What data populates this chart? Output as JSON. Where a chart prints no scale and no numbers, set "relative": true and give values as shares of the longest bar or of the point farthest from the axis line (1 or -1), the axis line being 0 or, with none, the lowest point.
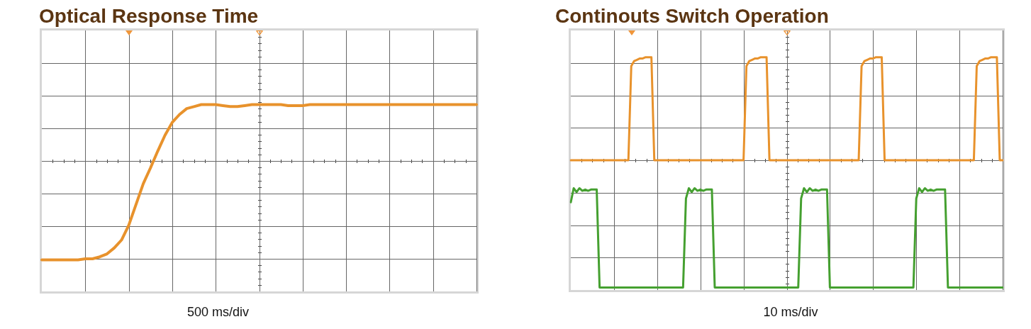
{
  "chart_data": [
    {
      "type": "line",
      "title": "Optical Response Time",
      "xlabel": "500 ms/div",
      "relative": true,
      "grid": true,
      "tick_labels": false,
      "marker": "none",
      "line_style": "solid",
      "categories": [
        null,
        null,
        null,
        null,
        null,
        null,
        null,
        null,
        null,
        null,
        null,
        null,
        null,
        null,
        null,
        null,
        null,
        null,
        null,
        null,
        null,
        null,
        null,
        null,
        null,
        null,
        null,
        null,
        null,
        null,
        null,
        null,
        null,
        null,
        null,
        null,
        null,
        null,
        null,
        null,
        null,
        null,
        null,
        null,
        null,
        null,
        null,
        null,
        null,
        null,
        null,
        null,
        null,
        null,
        null,
        null,
        null,
        null,
        null,
        null,
        null
      ],
      "series": [
        {
          "color": "#e8922c",
          "values": [
            -1,
            -1,
            -1,
            -1,
            -1,
            -1,
            -0.99,
            -0.99,
            -0.97,
            -0.94,
            -0.88,
            -0.8,
            -0.65,
            -0.44,
            -0.23,
            -0.07,
            0.1,
            0.26,
            0.39,
            0.47,
            0.53,
            0.55,
            0.57,
            0.57,
            0.57,
            0.56,
            0.55,
            0.55,
            0.56,
            0.57,
            0.57,
            0.57,
            0.57,
            0.57,
            0.56,
            0.56,
            0.56,
            0.57,
            0.57,
            0.57,
            0.57,
            0.57,
            0.57,
            0.57,
            0.57,
            0.57,
            0.57,
            0.57,
            0.57,
            0.57,
            0.57,
            0.57,
            0.57,
            0.57,
            0.57,
            0.57,
            0.57,
            0.57,
            0.57,
            0.57,
            0.57
          ]
        }
      ]
    },
    {
      "type": "line",
      "title": "Continouts Switch Operation",
      "xlabel": "10 ms/div",
      "relative": true,
      "grid": true,
      "tick_labels": false,
      "marker": "none",
      "line_style": "solid",
      "categories": [
        null,
        null,
        null,
        null,
        null,
        null,
        null,
        null,
        null,
        null,
        null,
        null,
        null,
        null,
        null,
        null,
        null,
        null,
        null,
        null,
        null,
        null,
        null,
        null,
        null,
        null,
        null,
        null,
        null,
        null,
        null,
        null,
        null,
        null,
        null,
        null,
        null,
        null,
        null,
        null,
        null,
        null,
        null,
        null,
        null,
        null,
        null,
        null,
        null,
        null,
        null,
        null,
        null,
        null,
        null,
        null,
        null,
        null,
        null,
        null,
        null,
        null,
        null,
        null,
        null,
        null,
        null,
        null,
        null,
        null,
        null,
        null,
        null,
        null,
        null,
        null,
        null,
        null,
        null,
        null,
        null,
        null,
        null,
        null,
        null,
        null,
        null,
        null,
        null,
        null,
        null,
        null,
        null,
        null,
        null,
        null,
        null,
        null,
        null,
        null,
        null,
        null,
        null,
        null,
        null,
        null,
        null,
        null,
        null,
        null,
        null,
        null,
        null,
        null,
        null,
        null,
        null,
        null,
        null,
        null,
        null,
        null,
        null,
        null,
        null,
        null,
        null,
        null,
        null,
        null,
        null,
        null,
        null,
        null,
        null,
        null,
        null,
        null,
        null,
        null,
        null,
        null,
        null,
        null,
        null,
        null,
        null,
        null,
        null,
        null,
        null
      ],
      "series": [
        {
          "color": "#e8922c",
          "values": [
            0,
            0,
            0,
            0,
            0,
            0,
            0,
            0,
            0,
            0,
            0,
            0,
            0,
            0,
            0,
            0,
            0,
            0,
            0,
            0,
            0,
            0.74,
            0.78,
            0.79,
            0.8,
            0.8,
            0.81,
            0.81,
            0.81,
            0,
            0,
            0,
            0,
            0,
            0,
            0,
            0,
            0,
            0,
            0,
            0,
            0,
            0,
            0,
            0,
            0,
            0,
            0,
            0,
            0,
            0,
            0,
            0,
            0,
            0,
            0,
            0,
            0,
            0,
            0,
            0,
            0.74,
            0.78,
            0.79,
            0.8,
            0.8,
            0.81,
            0.81,
            0.81,
            0,
            0,
            0,
            0,
            0,
            0,
            0,
            0,
            0,
            0,
            0,
            0,
            0,
            0,
            0,
            0,
            0,
            0,
            0,
            0,
            0,
            0,
            0,
            0,
            0,
            0,
            0,
            0,
            0,
            0,
            0,
            0,
            0.74,
            0.78,
            0.79,
            0.8,
            0.8,
            0.81,
            0.81,
            0.81,
            0,
            0,
            0,
            0,
            0,
            0,
            0,
            0,
            0,
            0,
            0,
            0,
            0,
            0,
            0,
            0,
            0,
            0,
            0,
            0,
            0,
            0,
            0,
            0,
            0,
            0,
            0,
            0,
            0,
            0,
            0,
            0,
            0.74,
            0.78,
            0.79,
            0.8,
            0.8,
            0.81,
            0.81,
            0.81,
            0,
            0
          ]
        },
        {
          "color": "#45a030",
          "values": [
            -0.33,
            -0.22,
            -0.25,
            -0.22,
            -0.24,
            -0.23,
            -0.24,
            -0.23,
            -0.23,
            -0.23,
            -1,
            -1,
            -1,
            -1,
            -1,
            -1,
            -1,
            -1,
            -1,
            -1,
            -1,
            -1,
            -1,
            -1,
            -1,
            -1,
            -1,
            -1,
            -1,
            -1,
            -1,
            -1,
            -1,
            -1,
            -1,
            -1,
            -1,
            -1,
            -1,
            -1,
            -0.3,
            -0.22,
            -0.25,
            -0.22,
            -0.24,
            -0.23,
            -0.24,
            -0.23,
            -0.23,
            -0.23,
            -1,
            -1,
            -1,
            -1,
            -1,
            -1,
            -1,
            -1,
            -1,
            -1,
            -1,
            -1,
            -1,
            -1,
            -1,
            -1,
            -1,
            -1,
            -1,
            -1,
            -1,
            -1,
            -1,
            -1,
            -1,
            -1,
            -1,
            -1,
            -1,
            -1,
            -0.3,
            -0.22,
            -0.25,
            -0.22,
            -0.24,
            -0.23,
            -0.24,
            -0.23,
            -0.23,
            -0.23,
            -1,
            -1,
            -1,
            -1,
            -1,
            -1,
            -1,
            -1,
            -1,
            -1,
            -1,
            -1,
            -1,
            -1,
            -1,
            -1,
            -1,
            -1,
            -1,
            -1,
            -1,
            -1,
            -1,
            -1,
            -1,
            -1,
            -1,
            -1,
            -1,
            -1,
            -0.3,
            -0.22,
            -0.25,
            -0.22,
            -0.24,
            -0.23,
            -0.24,
            -0.23,
            -0.23,
            -0.23,
            -0.23,
            -1,
            -1,
            -1,
            -1,
            -1,
            -1,
            -1,
            -1,
            -1,
            -1,
            -1,
            -1,
            -1,
            -1,
            -1,
            -1,
            -1,
            -1,
            -1,
            -1
          ]
        }
      ]
    }
  ]
}
